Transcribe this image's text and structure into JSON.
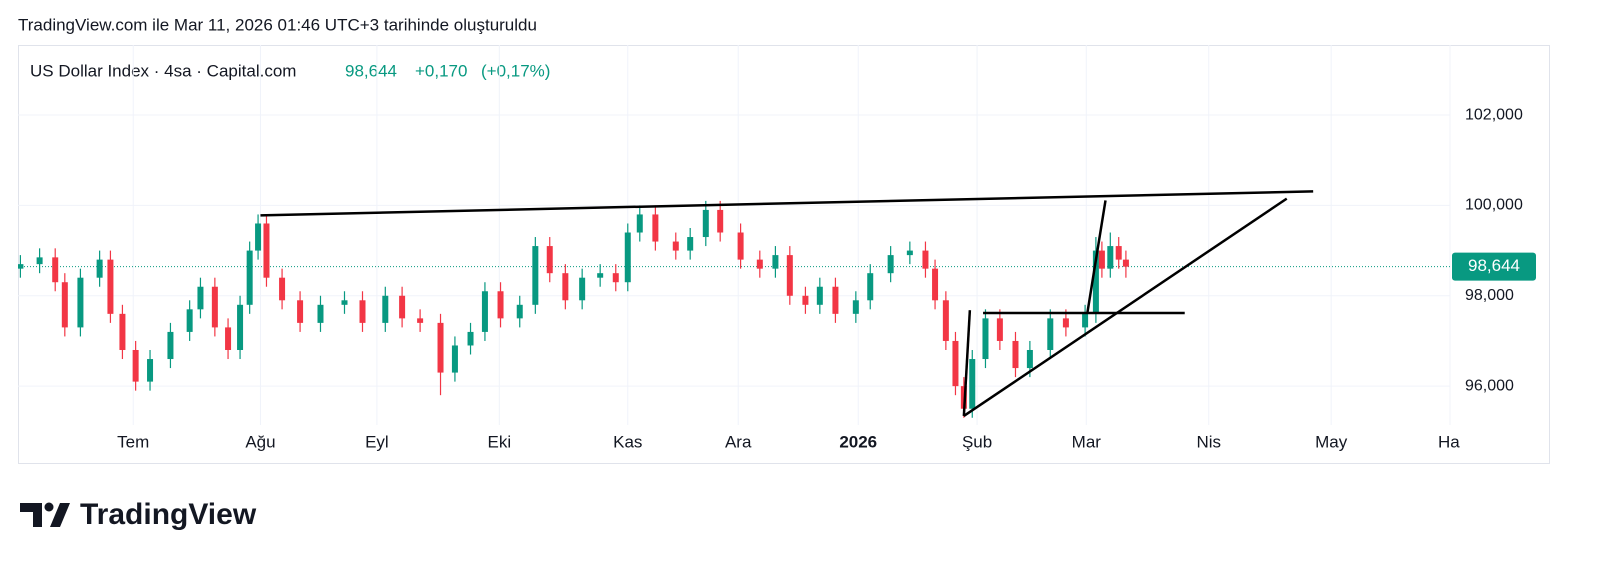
{
  "page": {
    "caption": "TradingView.com ile Mar 11, 2026 01:46 UTC+3 tarihinde oluşturuldu",
    "brand": "TradingView"
  },
  "chart_data": {
    "type": "candlestick",
    "header": {
      "symbol": "US Dollar Index · 4sa · Capital.com",
      "change": "+0,170",
      "change_pct": "(+0,17%)"
    },
    "last": {
      "value": 98.644,
      "label": "98,644"
    },
    "x": [
      6.06,
      6.22,
      6.35,
      6.43,
      6.56,
      6.72,
      6.81,
      6.91,
      7.02,
      7.14,
      7.31,
      7.47,
      7.56,
      7.68,
      7.79,
      7.89,
      7.97,
      8.04,
      8.11,
      8.24,
      8.39,
      8.56,
      8.76,
      8.91,
      9.1,
      9.24,
      9.39,
      9.56,
      9.68,
      9.81,
      9.93,
      10.06,
      10.22,
      10.35,
      10.47,
      10.6,
      10.74,
      10.89,
      11.02,
      11.12,
      11.22,
      11.35,
      11.52,
      11.64,
      11.77,
      11.89,
      12.06,
      12.22,
      12.35,
      12.47,
      12.6,
      12.72,
      12.85,
      13.02,
      13.14,
      13.31,
      13.47,
      13.6,
      13.68,
      13.77,
      13.85,
      13.92,
      13.99,
      14.1,
      14.22,
      14.35,
      14.47,
      14.64,
      14.77,
      14.93,
      15.02,
      15.07,
      15.14,
      15.21,
      15.27
    ],
    "open": [
      98.6,
      98.7,
      98.85,
      98.3,
      97.3,
      98.4,
      98.8,
      97.6,
      96.8,
      96.1,
      96.6,
      97.2,
      97.7,
      98.2,
      97.3,
      96.8,
      97.8,
      99.0,
      99.6,
      98.4,
      97.9,
      97.4,
      97.8,
      97.9,
      97.4,
      98.0,
      97.5,
      97.4,
      96.3,
      96.9,
      97.2,
      98.1,
      97.5,
      97.8,
      99.1,
      98.5,
      97.9,
      98.4,
      98.5,
      98.3,
      99.4,
      99.8,
      99.2,
      99.0,
      99.3,
      99.9,
      99.4,
      98.8,
      98.6,
      98.9,
      98.0,
      97.8,
      98.2,
      97.6,
      97.9,
      98.5,
      98.9,
      99.0,
      98.6,
      97.9,
      97.0,
      96.0,
      95.5,
      96.6,
      97.5,
      97.0,
      96.4,
      96.8,
      97.5,
      97.3,
      97.6,
      99.0,
      98.6,
      99.1,
      98.8
    ],
    "high": [
      98.9,
      99.05,
      99.05,
      98.5,
      98.6,
      99.0,
      99.0,
      97.8,
      97.0,
      96.8,
      97.4,
      97.9,
      98.4,
      98.4,
      97.5,
      98.0,
      99.2,
      99.8,
      99.8,
      98.6,
      98.1,
      98.0,
      98.1,
      98.1,
      98.2,
      98.2,
      97.7,
      97.6,
      97.1,
      97.4,
      98.3,
      98.3,
      98.0,
      99.3,
      99.3,
      98.7,
      98.6,
      98.7,
      98.7,
      99.6,
      100.0,
      100.0,
      99.4,
      99.5,
      100.1,
      100.1,
      99.6,
      99.0,
      99.1,
      99.1,
      98.2,
      98.4,
      98.4,
      98.1,
      98.7,
      99.1,
      99.2,
      99.2,
      98.8,
      98.1,
      97.2,
      96.2,
      96.8,
      97.7,
      97.7,
      97.2,
      97.0,
      97.7,
      97.7,
      97.8,
      99.3,
      99.2,
      99.4,
      99.3,
      99.0
    ],
    "low": [
      98.4,
      98.5,
      98.1,
      97.1,
      97.1,
      98.2,
      97.4,
      96.6,
      95.9,
      95.9,
      96.4,
      97.0,
      97.5,
      97.1,
      96.6,
      96.6,
      97.6,
      98.8,
      98.2,
      97.7,
      97.2,
      97.2,
      97.6,
      97.2,
      97.2,
      97.3,
      97.2,
      95.8,
      96.1,
      96.7,
      97.0,
      97.3,
      97.3,
      97.6,
      98.3,
      97.7,
      97.7,
      98.2,
      98.1,
      98.1,
      99.2,
      99.0,
      98.8,
      98.8,
      99.1,
      99.2,
      98.6,
      98.4,
      98.4,
      97.8,
      97.6,
      97.6,
      97.4,
      97.4,
      97.7,
      98.3,
      98.7,
      98.4,
      97.7,
      96.8,
      95.8,
      95.3,
      95.3,
      96.4,
      96.8,
      96.2,
      96.2,
      96.6,
      97.1,
      97.1,
      97.4,
      98.4,
      98.4,
      98.6,
      98.4
    ],
    "close": [
      98.7,
      98.85,
      98.3,
      97.3,
      98.4,
      98.8,
      97.6,
      96.8,
      96.1,
      96.6,
      97.2,
      97.7,
      98.2,
      97.3,
      96.8,
      97.8,
      99.0,
      99.6,
      98.4,
      97.9,
      97.4,
      97.8,
      97.9,
      97.4,
      98.0,
      97.5,
      97.4,
      96.3,
      96.9,
      97.2,
      98.1,
      97.5,
      97.8,
      99.1,
      98.5,
      97.9,
      98.4,
      98.5,
      98.3,
      99.4,
      99.8,
      99.2,
      99.0,
      99.3,
      99.9,
      99.4,
      98.8,
      98.6,
      98.9,
      98.0,
      97.8,
      98.2,
      97.6,
      97.9,
      98.5,
      98.9,
      99.0,
      98.6,
      97.9,
      97.0,
      96.0,
      95.5,
      96.6,
      97.5,
      97.0,
      96.4,
      96.8,
      97.5,
      97.3,
      97.6,
      99.0,
      98.6,
      99.1,
      98.8,
      98.644
    ],
    "up_color": "#089981",
    "down_color": "#f23645",
    "drawings": [
      {
        "x": [
          8.06,
          16.83
        ],
        "y": [
          99.78,
          100.31
        ]
      },
      {
        "x": [
          13.92,
          16.61
        ],
        "y": [
          95.34,
          100.15
        ]
      },
      {
        "x": [
          14.08,
          15.76
        ],
        "y": [
          97.62,
          97.62
        ]
      },
      {
        "x": [
          13.92,
          13.97
        ],
        "y": [
          95.34,
          97.68
        ]
      },
      {
        "x": [
          14.95,
          15.1
        ],
        "y": [
          97.64,
          100.11
        ]
      }
    ],
    "xlim": [
      6.04,
      17.97
    ],
    "xticks": [
      {
        "value": 7.0,
        "label": "Tem"
      },
      {
        "value": 8.06,
        "label": "Ağu"
      },
      {
        "value": 9.03,
        "label": "Eyl"
      },
      {
        "value": 10.05,
        "label": "Eki"
      },
      {
        "value": 11.12,
        "label": "Kas"
      },
      {
        "value": 12.04,
        "label": "Ara"
      },
      {
        "value": 13.04,
        "label": "2026"
      },
      {
        "value": 14.03,
        "label": "Şub"
      },
      {
        "value": 14.94,
        "label": "Mar"
      },
      {
        "value": 15.96,
        "label": "Nis"
      },
      {
        "value": 16.98,
        "label": "May"
      },
      {
        "value": 17.97,
        "label": "Ha"
      }
    ],
    "ylim": [
      95.14,
      103.55
    ],
    "yticks": [
      {
        "value": 96,
        "label": "96,000"
      },
      {
        "value": 98,
        "label": "98,000"
      },
      {
        "value": 100,
        "label": "100,000"
      },
      {
        "value": 102,
        "label": "102,000"
      }
    ],
    "grid": true
  }
}
